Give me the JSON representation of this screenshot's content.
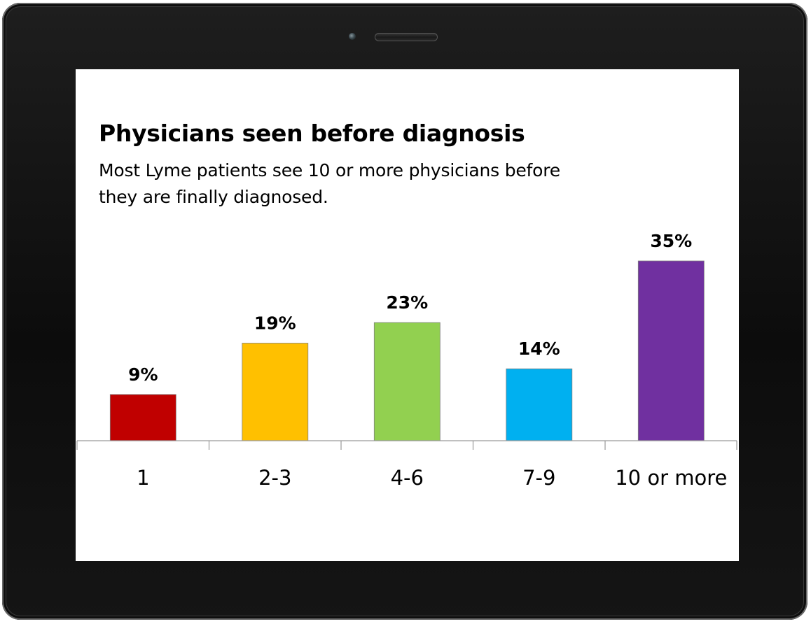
{
  "chart_data": {
    "type": "bar",
    "title": "Physicians seen before diagnosis",
    "subtitle_lines": [
      "Most Lyme patients see 10 or more physicians before",
      "they are finally diagnosed."
    ],
    "categories": [
      "1",
      "2-3",
      "4-6",
      "7-9",
      "10 or more"
    ],
    "values": [
      9,
      19,
      23,
      14,
      35
    ],
    "data_labels": [
      "9%",
      "19%",
      "23%",
      "14%",
      "35%"
    ],
    "colors": [
      "#c00000",
      "#ffc000",
      "#92d050",
      "#00b0f0",
      "#7030a0"
    ],
    "ylim": [
      0,
      35
    ],
    "xlabel": "",
    "ylabel": "",
    "grid": false,
    "legend": "none"
  }
}
